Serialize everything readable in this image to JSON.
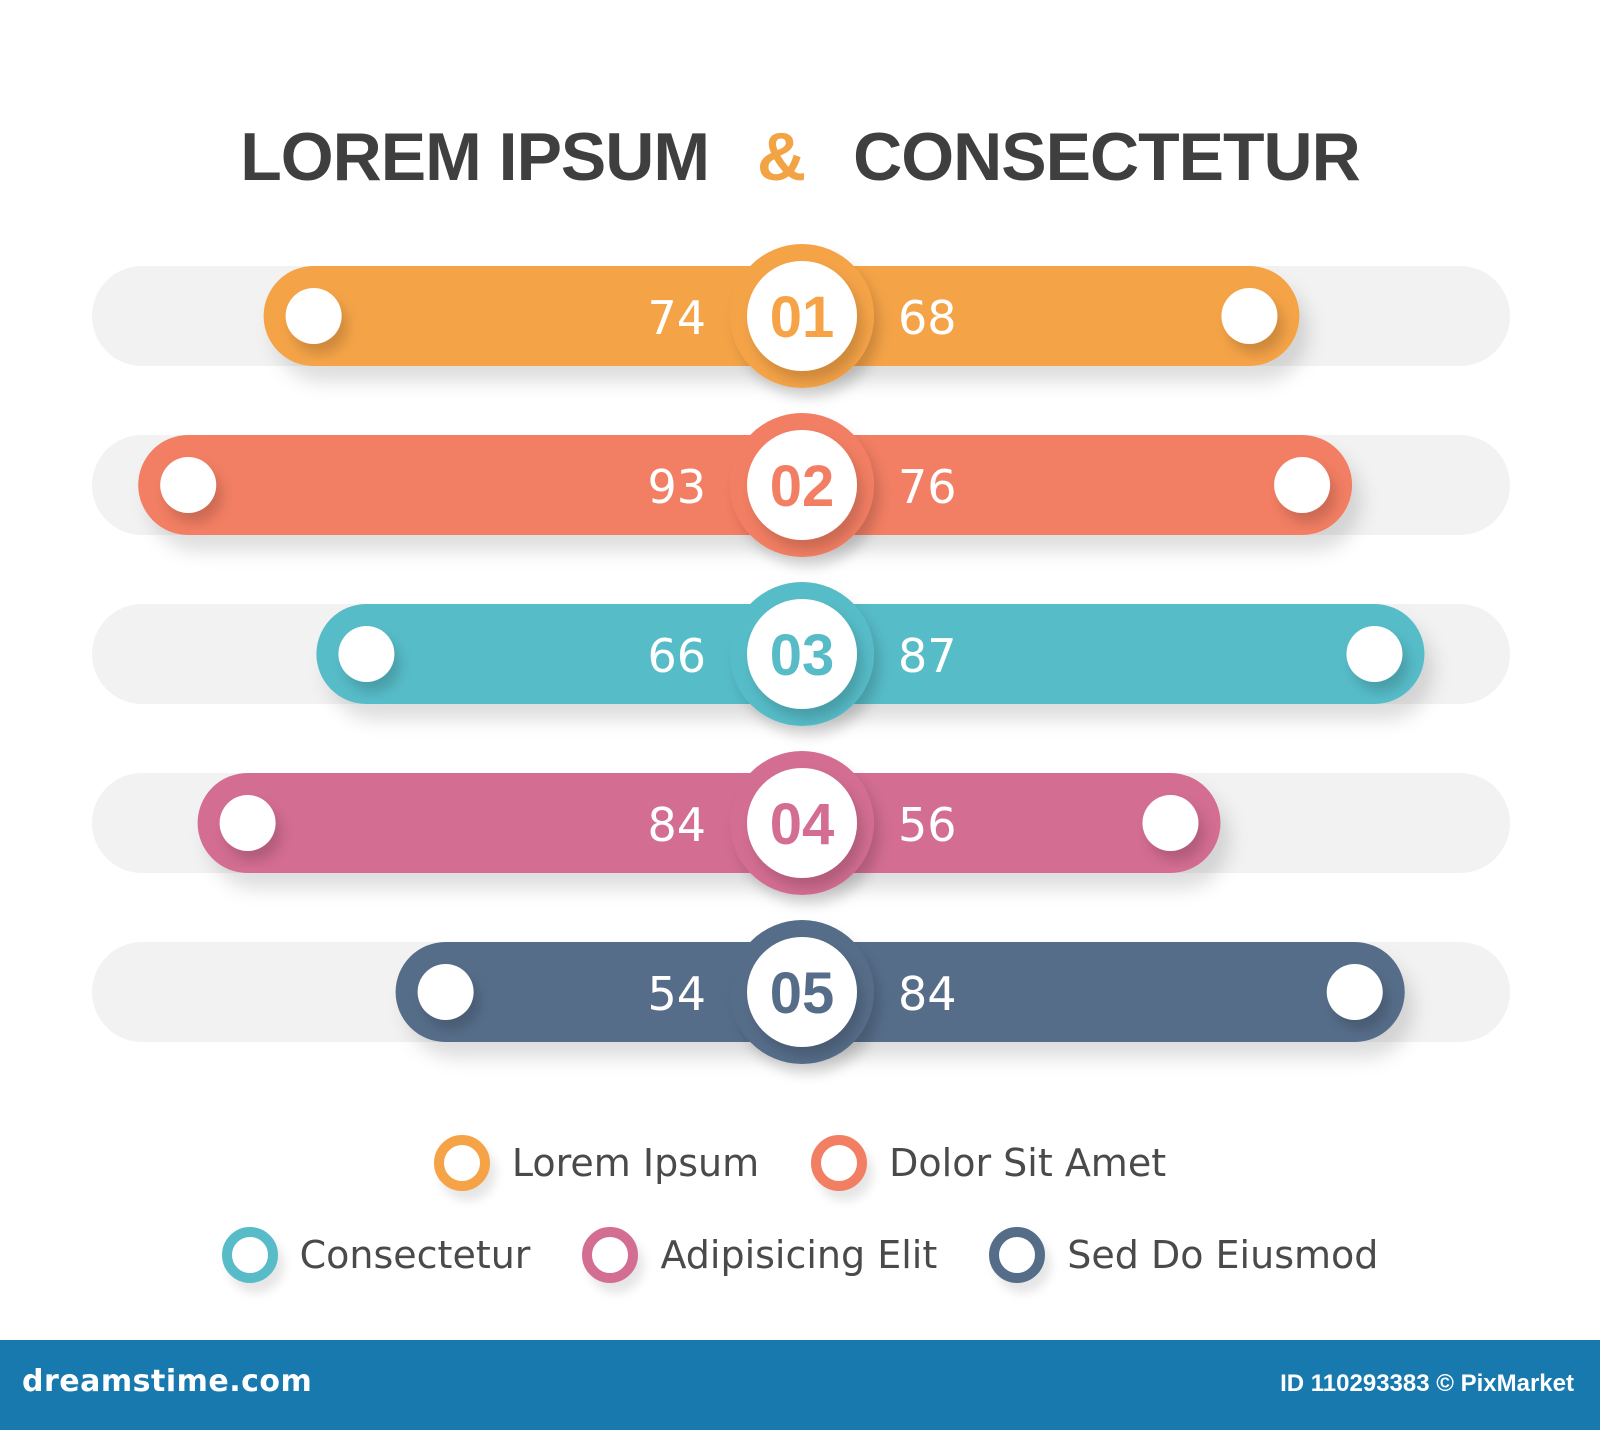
{
  "title": {
    "left": "LOREM IPSUM",
    "amp": "&",
    "right": "CONSECTETUR"
  },
  "chart_data": {
    "type": "bar",
    "title": "LOREM IPSUM & CONSECTETUR",
    "categories": [
      "01",
      "02",
      "03",
      "04",
      "05"
    ],
    "series": [
      {
        "name": "LOREM IPSUM",
        "values": [
          74,
          93,
          66,
          84,
          54
        ]
      },
      {
        "name": "CONSECTETUR",
        "values": [
          68,
          76,
          87,
          56,
          84
        ]
      }
    ],
    "colors": [
      "#f5a346",
      "#f27e63",
      "#57bcc8",
      "#d36d92",
      "#566d89"
    ],
    "track_color": "#f2f2f2",
    "max_value": 100,
    "legend": [
      {
        "label": "Lorem Ipsum",
        "color": "#f5a346"
      },
      {
        "label": "Dolor Sit Amet",
        "color": "#f27e63"
      },
      {
        "label": "Consectetur",
        "color": "#57bcc8"
      },
      {
        "label": "Adipisicing Elit",
        "color": "#d36d92"
      },
      {
        "label": "Sed Do Eiusmod",
        "color": "#566d89"
      }
    ],
    "legend_placement": "bottom"
  },
  "footer": {
    "site": "dreamstime.com",
    "id_text": "ID 110293383 © PixMarket"
  }
}
